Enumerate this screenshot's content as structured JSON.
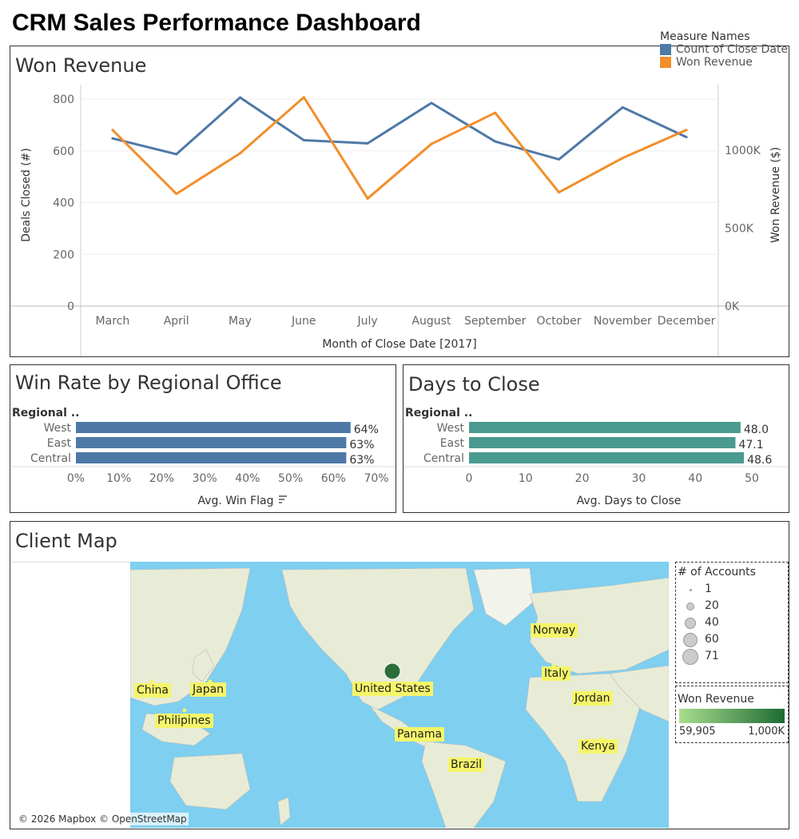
{
  "dashboard": {
    "title": "CRM Sales Performance Dashboard"
  },
  "won_revenue_panel": {
    "title": "Won Revenue",
    "legend_title": "Measure Names",
    "legend": [
      {
        "label": "Count of Close Date",
        "color": "#4e79a7"
      },
      {
        "label": "Won Revenue",
        "color": "#f28e2b"
      }
    ]
  },
  "win_rate_panel": {
    "title": "Win Rate by Regional Office"
  },
  "days_panel": {
    "title": "Days to Close"
  },
  "map_panel": {
    "title": "Client Map",
    "attribution": "© 2026 Mapbox © OpenStreetMap",
    "size_legend_title": "# of Accounts",
    "size_legend": [
      "1",
      "20",
      "40",
      "60",
      "71"
    ],
    "color_legend_title": "Won Revenue",
    "color_legend_min": "59,905",
    "color_legend_max": "1,000K",
    "countries": [
      "Norway",
      "Italy",
      "Jordan",
      "Kenya",
      "United States",
      "Panama",
      "Brazil",
      "China",
      "Japan",
      "Philipines"
    ]
  },
  "chart_data": [
    {
      "type": "line",
      "title": "Won Revenue",
      "categories": [
        "March",
        "April",
        "May",
        "June",
        "July",
        "August",
        "September",
        "October",
        "November",
        "December"
      ],
      "xlabel": "Month of Close Date [2017]",
      "ylabel": "Deals Closed (#)",
      "y2label": "Won Revenue ($)",
      "ylim": [
        0,
        800
      ],
      "yticks": [
        "0",
        "200",
        "400",
        "600",
        "800"
      ],
      "y2lim": [
        0,
        1000000
      ],
      "y2ticks": [
        "0K",
        "500K",
        "1000K"
      ],
      "series": [
        {
          "name": "Count of Close Date",
          "axis": "left",
          "color": "#4e79a7",
          "values": [
            648,
            587,
            806,
            641,
            629,
            785,
            636,
            567,
            768,
            653
          ]
        },
        {
          "name": "Won Revenue",
          "axis": "right",
          "color": "#f28e2b",
          "values": [
            1130000,
            720000,
            980000,
            1340000,
            690000,
            1040000,
            1240000,
            730000,
            950000,
            1130000
          ]
        }
      ],
      "legend": "top-right",
      "grid": true
    },
    {
      "type": "bar",
      "orientation": "horizontal",
      "title": "Win Rate by Regional Office",
      "dim_label": "Regional ..",
      "categories": [
        "West",
        "East",
        "Central"
      ],
      "values": [
        0.64,
        0.63,
        0.63
      ],
      "value_labels": [
        "64%",
        "63%",
        "63%"
      ],
      "xlabel": "Avg. Win Flag",
      "xlim": [
        0,
        0.7
      ],
      "xticks": [
        "0%",
        "10%",
        "20%",
        "30%",
        "40%",
        "50%",
        "60%",
        "70%"
      ],
      "color": "#4e79a7"
    },
    {
      "type": "bar",
      "orientation": "horizontal",
      "title": "Days to Close",
      "dim_label": "Regional ..",
      "categories": [
        "West",
        "East",
        "Central"
      ],
      "values": [
        48.0,
        47.1,
        48.6
      ],
      "value_labels": [
        "48.0",
        "47.1",
        "48.6"
      ],
      "xlabel": "Avg. Days to Close",
      "xlim": [
        0,
        50
      ],
      "xticks": [
        "0",
        "10",
        "20",
        "30",
        "40",
        "50"
      ],
      "color": "#4a9a8f"
    }
  ]
}
